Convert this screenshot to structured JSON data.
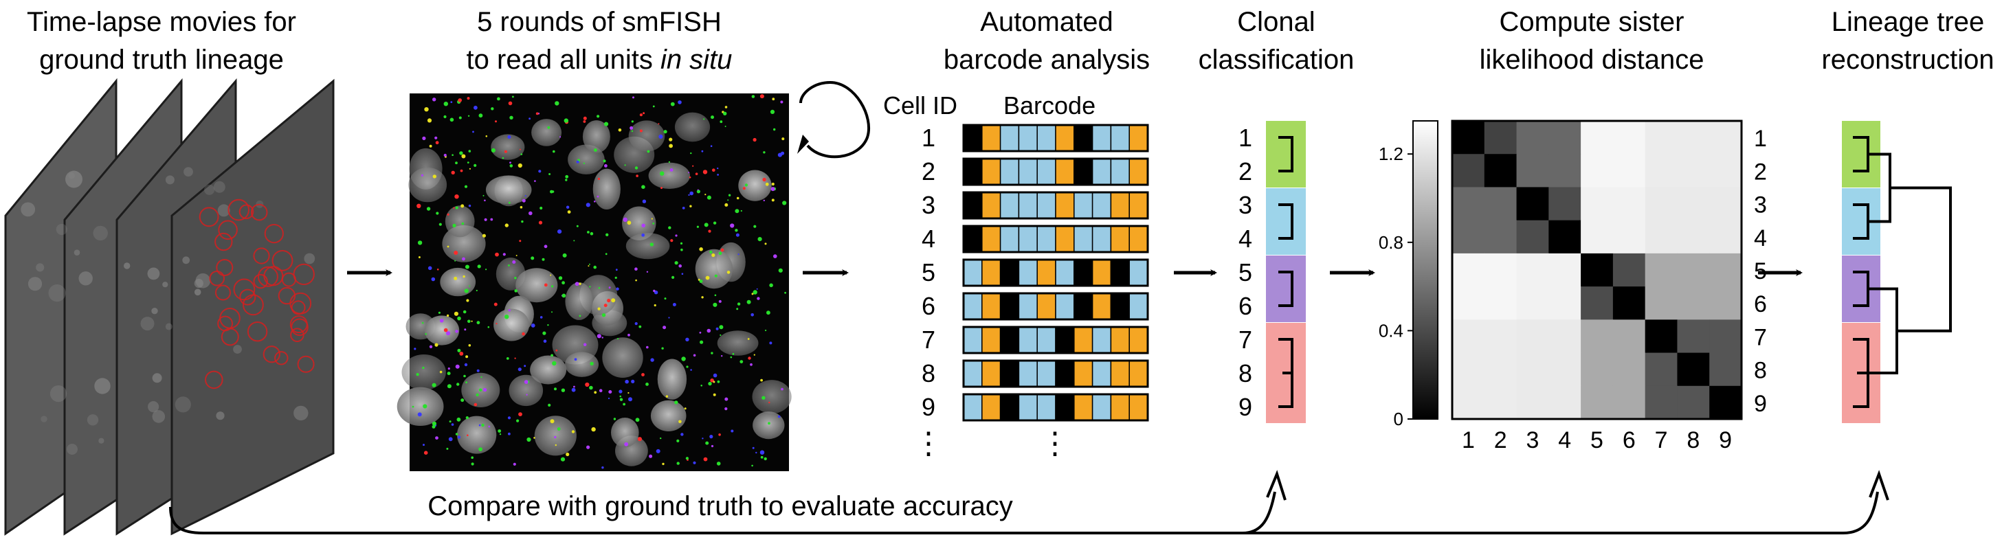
{
  "panels": {
    "timelapse": {
      "line1": "Time-lapse movies for",
      "line2": "ground truth lineage"
    },
    "smfish": {
      "line1": "5 rounds of smFISH",
      "line2_prefix": "to read all units ",
      "line2_italic": "in situ"
    },
    "barcode": {
      "line1": "Automated",
      "line2": "barcode analysis",
      "col_cell": "Cell ID",
      "col_barcode": "Barcode",
      "ellipsis": "⋮"
    },
    "clonal": {
      "line1": "Clonal",
      "line2": "classification"
    },
    "sister": {
      "line1": "Compute sister",
      "line2": "likelihood distance"
    },
    "lineage": {
      "line1": "Lineage tree",
      "line2": "reconstruction"
    }
  },
  "bottom_text": "Compare with ground truth to evaluate accuracy",
  "colors": {
    "blue": "#9ACBE4",
    "orange": "#F5A623",
    "black": "#000000",
    "green": "#A6D95F",
    "cyan": "#9DD4EA",
    "purple": "#A98BD6",
    "red": "#F4A09E"
  },
  "cells": [
    {
      "id": "1",
      "barcode": [
        "k",
        "o",
        "b",
        "b",
        "b",
        "o",
        "k",
        "b",
        "b",
        "o"
      ]
    },
    {
      "id": "2",
      "barcode": [
        "k",
        "o",
        "b",
        "b",
        "b",
        "o",
        "k",
        "b",
        "b",
        "o"
      ]
    },
    {
      "id": "3",
      "barcode": [
        "k",
        "o",
        "b",
        "b",
        "b",
        "o",
        "b",
        "b",
        "o",
        "o"
      ]
    },
    {
      "id": "4",
      "barcode": [
        "k",
        "o",
        "b",
        "b",
        "b",
        "o",
        "b",
        "b",
        "o",
        "o"
      ]
    },
    {
      "id": "5",
      "barcode": [
        "b",
        "o",
        "k",
        "b",
        "o",
        "b",
        "k",
        "o",
        "k",
        "b"
      ]
    },
    {
      "id": "6",
      "barcode": [
        "b",
        "o",
        "k",
        "b",
        "o",
        "b",
        "k",
        "o",
        "k",
        "b"
      ]
    },
    {
      "id": "7",
      "barcode": [
        "b",
        "o",
        "k",
        "b",
        "b",
        "k",
        "o",
        "b",
        "o",
        "o"
      ]
    },
    {
      "id": "8",
      "barcode": [
        "b",
        "o",
        "k",
        "b",
        "b",
        "k",
        "o",
        "b",
        "o",
        "o"
      ]
    },
    {
      "id": "9",
      "barcode": [
        "b",
        "o",
        "k",
        "b",
        "b",
        "k",
        "o",
        "b",
        "o",
        "o"
      ]
    }
  ],
  "clones": [
    {
      "color": "green",
      "members": [
        "1",
        "2"
      ]
    },
    {
      "color": "cyan",
      "members": [
        "3",
        "4"
      ]
    },
    {
      "color": "purple",
      "members": [
        "5",
        "6"
      ]
    },
    {
      "color": "red",
      "members": [
        "7",
        "8",
        "9"
      ]
    }
  ],
  "heatmap": {
    "labels": [
      "1",
      "2",
      "3",
      "4",
      "5",
      "6",
      "7",
      "8",
      "9"
    ],
    "colorbar_ticks": [
      "1.2",
      "0.8",
      "0.4",
      "0"
    ],
    "matrix": [
      [
        0.0,
        0.35,
        0.55,
        0.55,
        1.3,
        1.3,
        1.25,
        1.25,
        1.25
      ],
      [
        0.35,
        0.0,
        0.55,
        0.55,
        1.3,
        1.3,
        1.25,
        1.25,
        1.25
      ],
      [
        0.55,
        0.55,
        0.0,
        0.4,
        1.28,
        1.28,
        1.24,
        1.24,
        1.24
      ],
      [
        0.55,
        0.55,
        0.4,
        0.0,
        1.28,
        1.28,
        1.24,
        1.24,
        1.24
      ],
      [
        1.3,
        1.3,
        1.28,
        1.28,
        0.0,
        0.4,
        0.9,
        0.9,
        0.9
      ],
      [
        1.3,
        1.3,
        1.28,
        1.28,
        0.4,
        0.0,
        0.9,
        0.9,
        0.9
      ],
      [
        1.25,
        1.25,
        1.24,
        1.24,
        0.9,
        0.9,
        0.0,
        0.45,
        0.45
      ],
      [
        1.25,
        1.25,
        1.24,
        1.24,
        0.9,
        0.9,
        0.45,
        0.0,
        0.45
      ],
      [
        1.25,
        1.25,
        1.24,
        1.24,
        0.9,
        0.9,
        0.45,
        0.45,
        0.0
      ]
    ]
  }
}
